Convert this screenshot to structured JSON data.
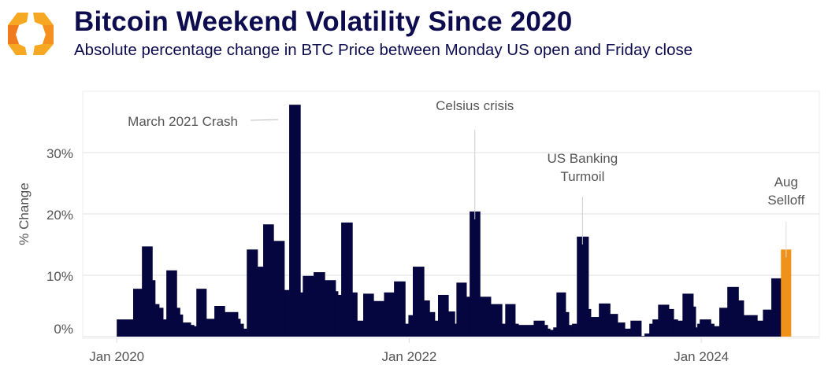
{
  "header": {
    "title": "Bitcoin Weekend Volatility Since 2020",
    "subtitle": "Absolute percentage change in BTC Price between Monday US open and Friday close",
    "logo_colors": [
      "#f7a823",
      "#f07b1e"
    ]
  },
  "chart_data": {
    "type": "bar",
    "title": "Bitcoin Weekend Volatility Since 2020",
    "subtitle": "Absolute percentage change in BTC Price between Monday US open and Friday close",
    "xlabel": "",
    "ylabel": "% Change",
    "xlim": [
      "2019-10-08",
      "2024-10-22"
    ],
    "ylim": [
      0,
      40
    ],
    "grid": true,
    "y_ticks": [
      {
        "value": 0,
        "label": "0%"
      },
      {
        "value": 10,
        "label": "10%"
      },
      {
        "value": 20,
        "label": "20%"
      },
      {
        "value": 30,
        "label": "30%"
      }
    ],
    "x_ticks": [
      {
        "date": "2020-01-01",
        "label": "Jan 2020"
      },
      {
        "date": "2022-01-01",
        "label": "Jan 2022"
      },
      {
        "date": "2024-01-01",
        "label": "Jan 2024"
      }
    ],
    "colors": {
      "bar": "#05053f",
      "highlight": "#f0921a",
      "grid": "#ebebeb",
      "annotation": "#555555"
    },
    "end_date": "2024-08-12",
    "bars": [
      {
        "start": "2020-01-01",
        "value": 2.8
      },
      {
        "start": "2020-02-11",
        "value": 7.8
      },
      {
        "start": "2020-03-04",
        "value": 14.7
      },
      {
        "start": "2020-03-30",
        "value": 9.2
      },
      {
        "start": "2020-04-06",
        "value": 5.3
      },
      {
        "start": "2020-04-16",
        "value": 4.7
      },
      {
        "start": "2020-04-26",
        "value": 2.8
      },
      {
        "start": "2020-05-04",
        "value": 10.8
      },
      {
        "start": "2020-05-30",
        "value": 4.7
      },
      {
        "start": "2020-06-07",
        "value": 3.6
      },
      {
        "start": "2020-06-14",
        "value": 2.3
      },
      {
        "start": "2020-07-04",
        "value": 1.9
      },
      {
        "start": "2020-07-12",
        "value": 1.7
      },
      {
        "start": "2020-07-18",
        "value": 7.8
      },
      {
        "start": "2020-08-12",
        "value": 2.9
      },
      {
        "start": "2020-09-01",
        "value": 5.0
      },
      {
        "start": "2020-09-27",
        "value": 4.0
      },
      {
        "start": "2020-10-30",
        "value": 2.9
      },
      {
        "start": "2020-11-05",
        "value": 2.1
      },
      {
        "start": "2020-11-13",
        "value": 1.3
      },
      {
        "start": "2020-11-21",
        "value": 14.2
      },
      {
        "start": "2020-12-18",
        "value": 11.4
      },
      {
        "start": "2021-01-01",
        "value": 18.3
      },
      {
        "start": "2021-01-27",
        "value": 15.6
      },
      {
        "start": "2021-02-23",
        "value": 7.6
      },
      {
        "start": "2021-03-07",
        "value": 37.8
      },
      {
        "start": "2021-04-04",
        "value": 7.2
      },
      {
        "start": "2021-04-10",
        "value": 9.9
      },
      {
        "start": "2021-05-07",
        "value": 10.5
      },
      {
        "start": "2021-06-04",
        "value": 9.2
      },
      {
        "start": "2021-07-01",
        "value": 7.4
      },
      {
        "start": "2021-07-07",
        "value": 6.8
      },
      {
        "start": "2021-07-15",
        "value": 18.6
      },
      {
        "start": "2021-08-12",
        "value": 7.2
      },
      {
        "start": "2021-08-24",
        "value": 2.6
      },
      {
        "start": "2021-09-08",
        "value": 7.0
      },
      {
        "start": "2021-10-04",
        "value": 5.8
      },
      {
        "start": "2021-10-30",
        "value": 7.2
      },
      {
        "start": "2021-11-24",
        "value": 9.0
      },
      {
        "start": "2021-12-22",
        "value": 2.1
      },
      {
        "start": "2021-12-30",
        "value": 3.5
      },
      {
        "start": "2022-01-10",
        "value": 11.4
      },
      {
        "start": "2022-02-07",
        "value": 5.9
      },
      {
        "start": "2022-02-21",
        "value": 4.0
      },
      {
        "start": "2022-03-06",
        "value": 2.6
      },
      {
        "start": "2022-03-14",
        "value": 6.8
      },
      {
        "start": "2022-04-09",
        "value": 4.1
      },
      {
        "start": "2022-04-25",
        "value": 2.1
      },
      {
        "start": "2022-04-29",
        "value": 8.8
      },
      {
        "start": "2022-05-24",
        "value": 6.5
      },
      {
        "start": "2022-06-01",
        "value": 20.4
      },
      {
        "start": "2022-06-27",
        "value": 6.5
      },
      {
        "start": "2022-07-24",
        "value": 5.3
      },
      {
        "start": "2022-08-21",
        "value": 2.1
      },
      {
        "start": "2022-08-29",
        "value": 5.3
      },
      {
        "start": "2022-09-23",
        "value": 2.1
      },
      {
        "start": "2022-10-01",
        "value": 1.9
      },
      {
        "start": "2022-11-08",
        "value": 2.6
      },
      {
        "start": "2022-12-05",
        "value": 1.9
      },
      {
        "start": "2022-12-13",
        "value": 1.3
      },
      {
        "start": "2022-12-19",
        "value": 1.1
      },
      {
        "start": "2022-12-27",
        "value": 1.5
      },
      {
        "start": "2023-01-04",
        "value": 7.2
      },
      {
        "start": "2023-01-27",
        "value": 4.0
      },
      {
        "start": "2023-02-04",
        "value": 1.9
      },
      {
        "start": "2023-02-12",
        "value": 2.1
      },
      {
        "start": "2023-02-24",
        "value": 16.3
      },
      {
        "start": "2023-03-25",
        "value": 4.5
      },
      {
        "start": "2023-03-31",
        "value": 3.2
      },
      {
        "start": "2023-04-20",
        "value": 5.4
      },
      {
        "start": "2023-05-18",
        "value": 3.7
      },
      {
        "start": "2023-06-06",
        "value": 2.3
      },
      {
        "start": "2023-06-24",
        "value": 1.3
      },
      {
        "start": "2023-07-08",
        "value": 2.6
      },
      {
        "start": "2023-08-04",
        "value": 0.1
      },
      {
        "start": "2023-08-12",
        "value": 0.5
      },
      {
        "start": "2023-08-24",
        "value": 2.1
      },
      {
        "start": "2023-09-01",
        "value": 2.8
      },
      {
        "start": "2023-09-15",
        "value": 5.2
      },
      {
        "start": "2023-10-12",
        "value": 4.5
      },
      {
        "start": "2023-10-24",
        "value": 2.8
      },
      {
        "start": "2023-11-03",
        "value": 2.6
      },
      {
        "start": "2023-11-15",
        "value": 7.0
      },
      {
        "start": "2023-12-12",
        "value": 4.9
      },
      {
        "start": "2023-12-18",
        "value": 1.5
      },
      {
        "start": "2023-12-22",
        "value": 2.1
      },
      {
        "start": "2023-12-28",
        "value": 2.8
      },
      {
        "start": "2024-01-25",
        "value": 2.1
      },
      {
        "start": "2024-02-02",
        "value": 1.7
      },
      {
        "start": "2024-02-15",
        "value": 4.7
      },
      {
        "start": "2024-03-06",
        "value": 8.1
      },
      {
        "start": "2024-04-03",
        "value": 5.9
      },
      {
        "start": "2024-04-16",
        "value": 3.5
      },
      {
        "start": "2024-05-20",
        "value": 2.6
      },
      {
        "start": "2024-06-03",
        "value": 4.4
      },
      {
        "start": "2024-06-24",
        "value": 9.5
      },
      {
        "start": "2024-07-18",
        "value": 14.2,
        "highlight": true
      }
    ],
    "annotations": [
      {
        "lines": [
          "March 2021 Crash"
        ],
        "date": "2021-03-21",
        "value": 37.8
      },
      {
        "lines": [
          "Celsius crisis"
        ],
        "date": "2022-06-14",
        "value": 20.4
      },
      {
        "lines": [
          "US Banking",
          "Turmoil"
        ],
        "date": "2023-03-10",
        "value": 16.3
      },
      {
        "lines": [
          "Aug",
          "Selloff"
        ],
        "date": "2024-07-31",
        "value": 14.2
      }
    ]
  }
}
